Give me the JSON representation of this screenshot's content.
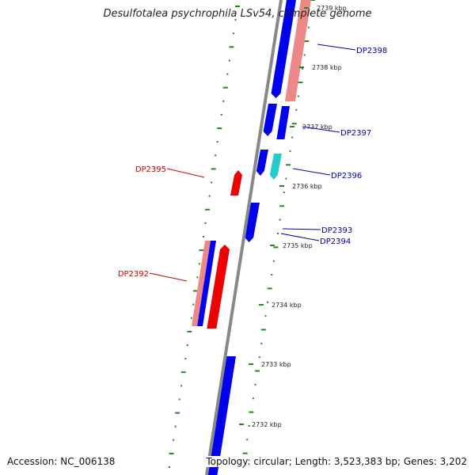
{
  "title": "Desulfotalea psychrophila LSv54, complete genome",
  "accession": "Accession: NC_006138",
  "topology": "Topology: circular; Length: 3,523,383 bp; Genes: 3,202",
  "colors": {
    "backbone": "#888888",
    "forward_strand": "#0000ee",
    "reverse_strand": "#ee0000",
    "forward_label": "#0000aa",
    "reverse_label": "#cc0000",
    "highlight_cyan": "#22cccc",
    "faded_red": "#ee8888",
    "tick_green": "#228822"
  },
  "ticks": [
    {
      "label": "2739 kbp",
      "faded": true
    },
    {
      "label": "2738 kbp"
    },
    {
      "label": "2737 kbp"
    },
    {
      "label": "2736 kbp"
    },
    {
      "label": "2735 kbp"
    },
    {
      "label": "2734 kbp"
    },
    {
      "label": "2733 kbp"
    },
    {
      "label": "2732 kbp"
    }
  ],
  "gene_labels": [
    {
      "name": "DP2398",
      "strand": "forward"
    },
    {
      "name": "DP2397",
      "strand": "forward"
    },
    {
      "name": "DP2396",
      "strand": "forward"
    },
    {
      "name": "DP2393",
      "strand": "forward"
    },
    {
      "name": "DP2394",
      "strand": "forward"
    },
    {
      "name": "DP2395",
      "strand": "reverse"
    },
    {
      "name": "DP2392",
      "strand": "reverse"
    }
  ]
}
